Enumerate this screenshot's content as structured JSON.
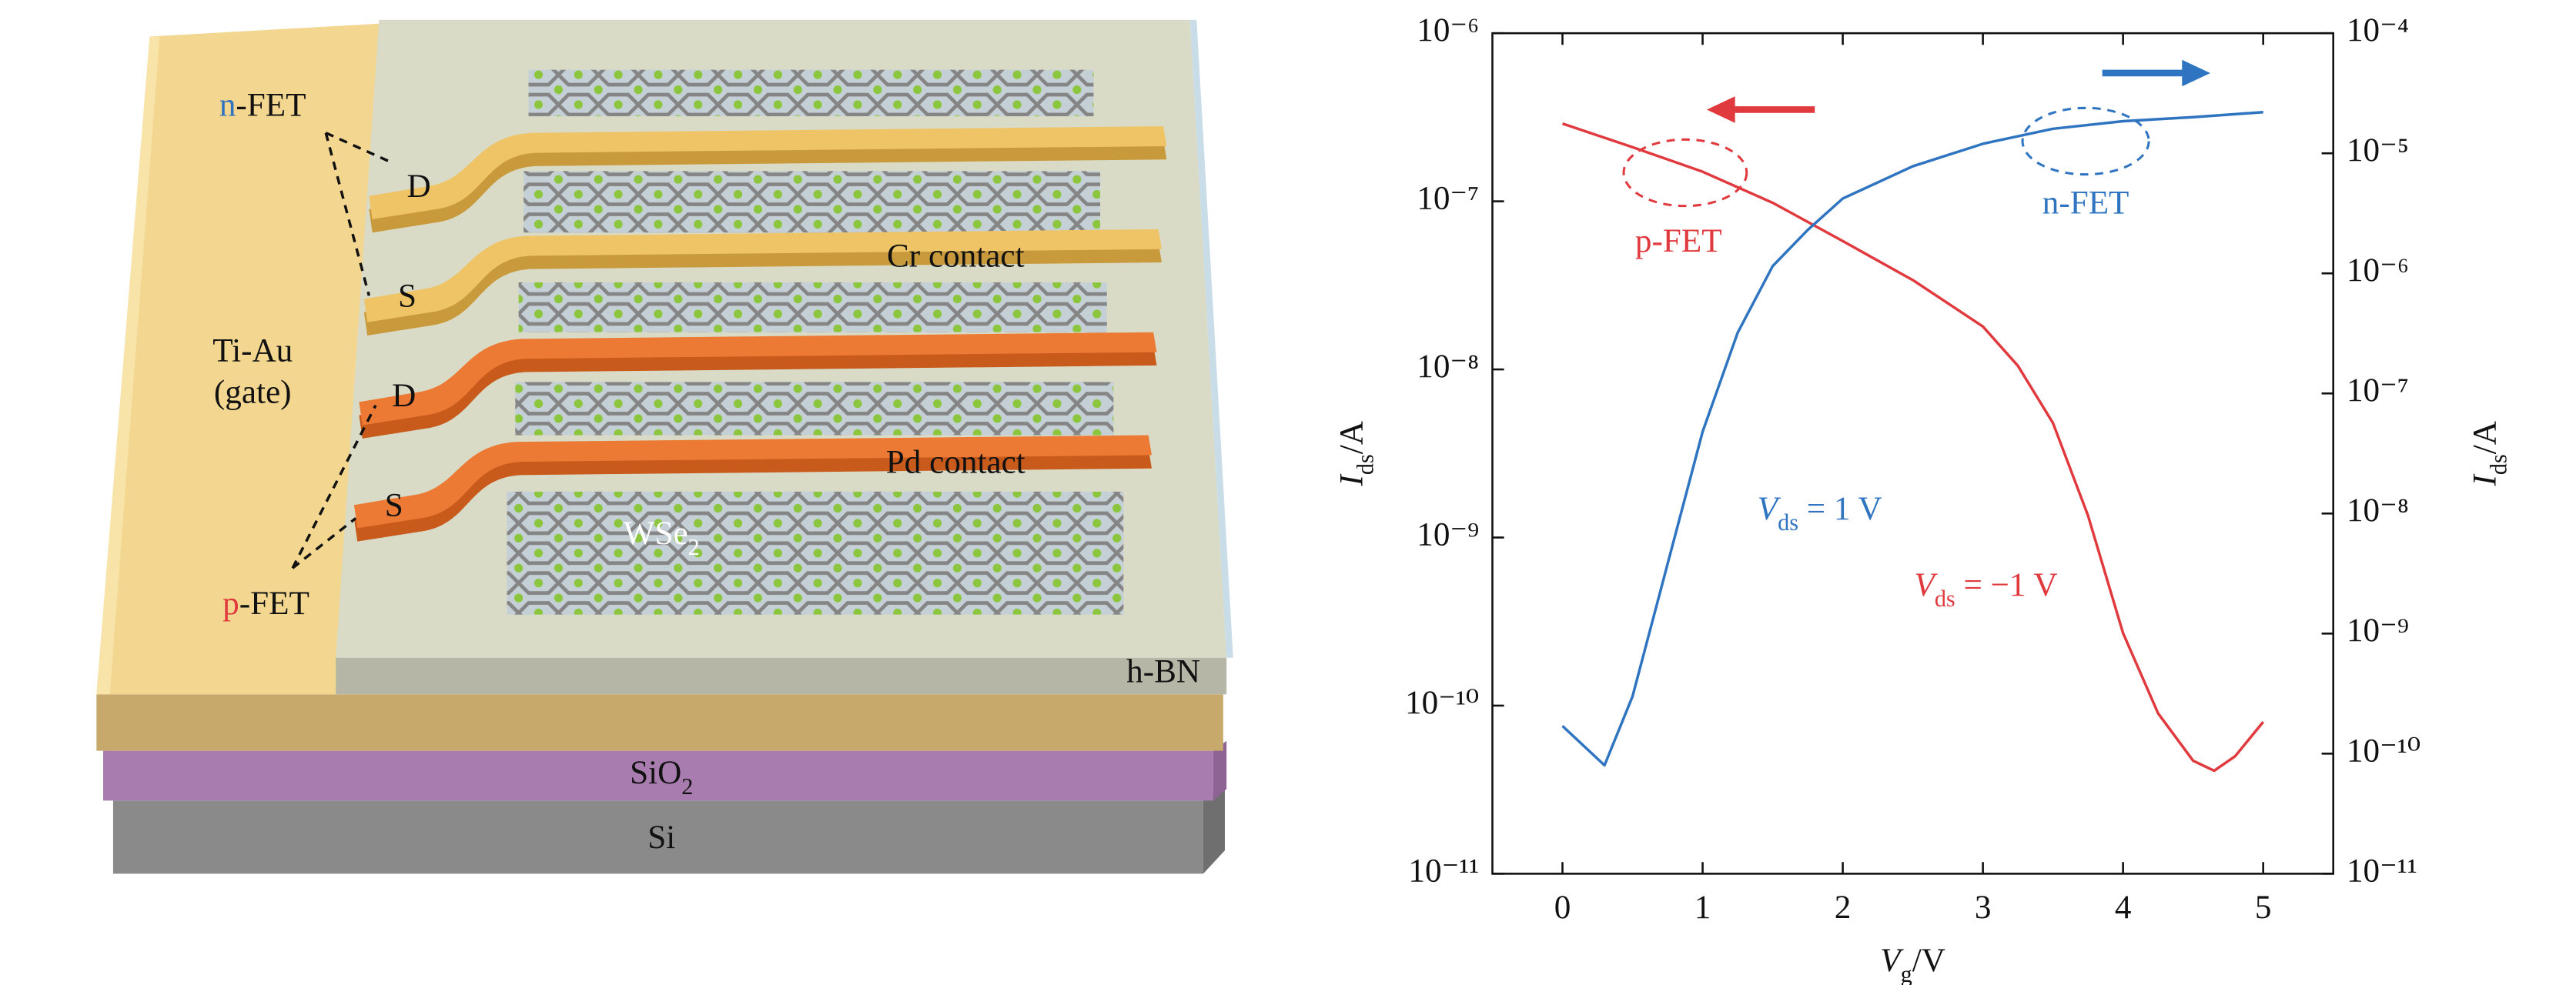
{
  "diagram": {
    "n_fet": {
      "prefix": "n",
      "rest": "-FET"
    },
    "p_fet": {
      "prefix": "p",
      "rest": "-FET"
    },
    "cr_drain": "D",
    "cr_source": "S",
    "cr_contact": "Cr contact",
    "gate": [
      "Ti-Au",
      "(gate)"
    ],
    "pd_drain": "D",
    "pd_source": "S",
    "pd_contact": "Pd contact",
    "wse2": {
      "base": "WSe",
      "sub": "2"
    },
    "hbn": "h-BN",
    "sio2": {
      "base": "SiO",
      "sub": "2"
    },
    "si": "Si"
  },
  "chart_data": {
    "type": "line",
    "xlabel": {
      "symbol": "V",
      "sub": "g",
      "unit": "/V"
    },
    "ylabel": {
      "symbol": "I",
      "sub": "ds",
      "unit": "/A"
    },
    "y2label": {
      "symbol": "I",
      "sub": "ds",
      "unit": "/A"
    },
    "xlim": [
      -0.5,
      5.5
    ],
    "xticks": [
      0,
      1,
      2,
      3,
      4,
      5
    ],
    "ylim": [
      1e-11,
      1e-06
    ],
    "yscale": "log",
    "yticks": [
      {
        "value": 1e-11,
        "label": "10⁻¹¹"
      },
      {
        "value": 1e-10,
        "label": "10⁻¹⁰"
      },
      {
        "value": 1e-09,
        "label": "10⁻⁹"
      },
      {
        "value": 1e-08,
        "label": "10⁻⁸"
      },
      {
        "value": 1e-07,
        "label": "10⁻⁷"
      },
      {
        "value": 1e-06,
        "label": "10⁻⁶"
      }
    ],
    "y2lim": [
      1e-11,
      0.0001
    ],
    "y2scale": "log",
    "y2ticks": [
      {
        "value": 1e-11,
        "label": "10⁻¹¹"
      },
      {
        "value": 1e-10,
        "label": "10⁻¹⁰"
      },
      {
        "value": 1e-09,
        "label": "10⁻⁹"
      },
      {
        "value": 1e-08,
        "label": "10⁻⁸"
      },
      {
        "value": 1e-07,
        "label": "10⁻⁷"
      },
      {
        "value": 1e-06,
        "label": "10⁻⁶"
      },
      {
        "value": 1e-05,
        "label": "10⁻⁵"
      },
      {
        "value": 0.0001,
        "label": "10⁻⁴"
      }
    ],
    "series": [
      {
        "name": "p-FET",
        "color": "#e0393e",
        "axis": "y",
        "annotation": {
          "symbol": "V",
          "sub": "ds",
          "rest": " = −1 V"
        },
        "x": [
          0,
          0.5,
          1,
          1.5,
          2,
          2.5,
          3,
          3.25,
          3.5,
          3.75,
          4,
          4.25,
          4.5,
          4.65,
          4.8,
          5
        ],
        "values": [
          2.9e-07,
          2.1e-07,
          1.5e-07,
          9.8e-08,
          5.8e-08,
          3.4e-08,
          1.8e-08,
          1.05e-08,
          4.8e-09,
          1.35e-09,
          2.7e-10,
          9e-11,
          4.7e-11,
          4.1e-11,
          5e-11,
          8e-11
        ]
      },
      {
        "name": "n-FET",
        "color": "#2f74c0",
        "axis": "y2",
        "annotation": {
          "symbol": "V",
          "sub": "ds",
          "rest": " = 1 V"
        },
        "x": [
          0,
          0.3,
          0.5,
          0.75,
          1,
          1.25,
          1.5,
          1.75,
          2,
          2.5,
          3,
          3.5,
          4,
          4.5,
          5
        ],
        "values": [
          1.7e-10,
          8e-11,
          3e-10,
          3.8e-09,
          4.8e-08,
          3.2e-07,
          1.15e-06,
          2.3e-06,
          4.2e-06,
          7.8e-06,
          1.2e-05,
          1.6e-05,
          1.85e-05,
          2e-05,
          2.2e-05
        ]
      }
    ]
  }
}
